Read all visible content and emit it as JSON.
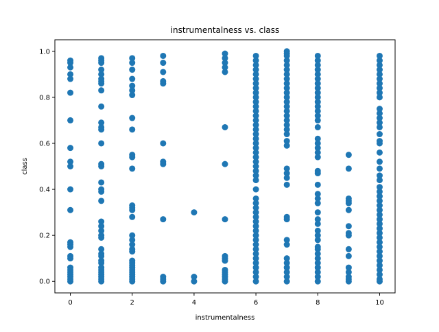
{
  "chart_data": {
    "type": "scatter",
    "title": "instrumentalness vs. class",
    "xlabel": "instrumentalness",
    "ylabel": "class",
    "xlim": [
      -0.5,
      10.5
    ],
    "ylim": [
      -0.05,
      1.05
    ],
    "x_ticks": [
      "0",
      "2",
      "4",
      "6",
      "8",
      "10"
    ],
    "y_ticks": [
      "0.0",
      "0.2",
      "0.4",
      "0.6",
      "0.8",
      "1.0"
    ],
    "x_tick_values": [
      0,
      2,
      4,
      6,
      8,
      10
    ],
    "y_tick_values": [
      0.0,
      0.2,
      0.4,
      0.6,
      0.8,
      1.0
    ],
    "grid": false,
    "marker_color": "#1f77b4",
    "series": [
      {
        "points": [
          [
            0,
            0.96
          ],
          [
            0,
            0.95
          ],
          [
            0,
            0.93
          ],
          [
            0,
            0.9
          ],
          [
            0,
            0.88
          ],
          [
            0,
            0.82
          ],
          [
            0,
            0.7
          ],
          [
            0,
            0.58
          ],
          [
            0,
            0.52
          ],
          [
            0,
            0.5
          ],
          [
            0,
            0.4
          ],
          [
            0,
            0.31
          ],
          [
            0,
            0.17
          ],
          [
            0,
            0.16
          ],
          [
            0,
            0.15
          ],
          [
            0,
            0.11
          ],
          [
            0,
            0.1
          ],
          [
            0,
            0.06
          ],
          [
            0,
            0.05
          ],
          [
            0,
            0.04
          ],
          [
            0,
            0.03
          ],
          [
            0,
            0.02
          ],
          [
            0,
            0.01
          ],
          [
            0,
            0.0
          ],
          [
            1,
            0.97
          ],
          [
            1,
            0.96
          ],
          [
            1,
            0.95
          ],
          [
            1,
            0.92
          ],
          [
            1,
            0.9
          ],
          [
            1,
            0.88
          ],
          [
            1,
            0.87
          ],
          [
            1,
            0.86
          ],
          [
            1,
            0.83
          ],
          [
            1,
            0.76
          ],
          [
            1,
            0.69
          ],
          [
            1,
            0.67
          ],
          [
            1,
            0.66
          ],
          [
            1,
            0.6
          ],
          [
            1,
            0.51
          ],
          [
            1,
            0.5
          ],
          [
            1,
            0.43
          ],
          [
            1,
            0.4
          ],
          [
            1,
            0.39
          ],
          [
            1,
            0.35
          ],
          [
            1,
            0.26
          ],
          [
            1,
            0.24
          ],
          [
            1,
            0.22
          ],
          [
            1,
            0.2
          ],
          [
            1,
            0.19
          ],
          [
            1,
            0.14
          ],
          [
            1,
            0.12
          ],
          [
            1,
            0.11
          ],
          [
            1,
            0.09
          ],
          [
            1,
            0.08
          ],
          [
            1,
            0.06
          ],
          [
            1,
            0.05
          ],
          [
            1,
            0.04
          ],
          [
            1,
            0.03
          ],
          [
            1,
            0.02
          ],
          [
            1,
            0.01
          ],
          [
            1,
            0.0
          ],
          [
            2,
            0.97
          ],
          [
            2,
            0.95
          ],
          [
            2,
            0.92
          ],
          [
            2,
            0.88
          ],
          [
            2,
            0.85
          ],
          [
            2,
            0.83
          ],
          [
            2,
            0.81
          ],
          [
            2,
            0.71
          ],
          [
            2,
            0.66
          ],
          [
            2,
            0.55
          ],
          [
            2,
            0.54
          ],
          [
            2,
            0.49
          ],
          [
            2,
            0.33
          ],
          [
            2,
            0.32
          ],
          [
            2,
            0.31
          ],
          [
            2,
            0.28
          ],
          [
            2,
            0.2
          ],
          [
            2,
            0.18
          ],
          [
            2,
            0.16
          ],
          [
            2,
            0.14
          ],
          [
            2,
            0.13
          ],
          [
            2,
            0.09
          ],
          [
            2,
            0.08
          ],
          [
            2,
            0.07
          ],
          [
            2,
            0.06
          ],
          [
            2,
            0.05
          ],
          [
            2,
            0.04
          ],
          [
            2,
            0.03
          ],
          [
            2,
            0.02
          ],
          [
            2,
            0.01
          ],
          [
            2,
            0.0
          ],
          [
            3,
            0.98
          ],
          [
            3,
            0.95
          ],
          [
            3,
            0.91
          ],
          [
            3,
            0.87
          ],
          [
            3,
            0.86
          ],
          [
            3,
            0.6
          ],
          [
            3,
            0.52
          ],
          [
            3,
            0.51
          ],
          [
            3,
            0.27
          ],
          [
            3,
            0.02
          ],
          [
            3,
            0.01
          ],
          [
            3,
            0.0
          ],
          [
            4,
            0.3
          ],
          [
            4,
            0.02
          ],
          [
            4,
            0.0
          ],
          [
            5,
            0.99
          ],
          [
            5,
            0.97
          ],
          [
            5,
            0.95
          ],
          [
            5,
            0.93
          ],
          [
            5,
            0.91
          ],
          [
            5,
            0.67
          ],
          [
            5,
            0.51
          ],
          [
            5,
            0.27
          ],
          [
            5,
            0.11
          ],
          [
            5,
            0.1
          ],
          [
            5,
            0.09
          ],
          [
            5,
            0.05
          ],
          [
            5,
            0.04
          ],
          [
            5,
            0.03
          ],
          [
            5,
            0.02
          ],
          [
            5,
            0.01
          ],
          [
            5,
            0.0
          ],
          [
            6,
            0.98
          ],
          [
            6,
            0.96
          ],
          [
            6,
            0.94
          ],
          [
            6,
            0.92
          ],
          [
            6,
            0.9
          ],
          [
            6,
            0.88
          ],
          [
            6,
            0.86
          ],
          [
            6,
            0.84
          ],
          [
            6,
            0.82
          ],
          [
            6,
            0.8
          ],
          [
            6,
            0.78
          ],
          [
            6,
            0.76
          ],
          [
            6,
            0.74
          ],
          [
            6,
            0.72
          ],
          [
            6,
            0.7
          ],
          [
            6,
            0.68
          ],
          [
            6,
            0.66
          ],
          [
            6,
            0.64
          ],
          [
            6,
            0.62
          ],
          [
            6,
            0.6
          ],
          [
            6,
            0.58
          ],
          [
            6,
            0.56
          ],
          [
            6,
            0.54
          ],
          [
            6,
            0.52
          ],
          [
            6,
            0.5
          ],
          [
            6,
            0.48
          ],
          [
            6,
            0.46
          ],
          [
            6,
            0.44
          ],
          [
            6,
            0.4
          ],
          [
            6,
            0.36
          ],
          [
            6,
            0.34
          ],
          [
            6,
            0.32
          ],
          [
            6,
            0.3
          ],
          [
            6,
            0.28
          ],
          [
            6,
            0.26
          ],
          [
            6,
            0.24
          ],
          [
            6,
            0.22
          ],
          [
            6,
            0.2
          ],
          [
            6,
            0.18
          ],
          [
            6,
            0.16
          ],
          [
            6,
            0.14
          ],
          [
            6,
            0.12
          ],
          [
            6,
            0.1
          ],
          [
            6,
            0.08
          ],
          [
            6,
            0.06
          ],
          [
            6,
            0.04
          ],
          [
            6,
            0.02
          ],
          [
            6,
            0.0
          ],
          [
            7,
            1.0
          ],
          [
            7,
            0.99
          ],
          [
            7,
            0.98
          ],
          [
            7,
            0.96
          ],
          [
            7,
            0.94
          ],
          [
            7,
            0.92
          ],
          [
            7,
            0.9
          ],
          [
            7,
            0.88
          ],
          [
            7,
            0.86
          ],
          [
            7,
            0.84
          ],
          [
            7,
            0.82
          ],
          [
            7,
            0.8
          ],
          [
            7,
            0.78
          ],
          [
            7,
            0.76
          ],
          [
            7,
            0.74
          ],
          [
            7,
            0.72
          ],
          [
            7,
            0.7
          ],
          [
            7,
            0.68
          ],
          [
            7,
            0.66
          ],
          [
            7,
            0.64
          ],
          [
            7,
            0.61
          ],
          [
            7,
            0.59
          ],
          [
            7,
            0.49
          ],
          [
            7,
            0.47
          ],
          [
            7,
            0.45
          ],
          [
            7,
            0.42
          ],
          [
            7,
            0.28
          ],
          [
            7,
            0.27
          ],
          [
            7,
            0.18
          ],
          [
            7,
            0.16
          ],
          [
            7,
            0.1
          ],
          [
            7,
            0.08
          ],
          [
            7,
            0.06
          ],
          [
            7,
            0.04
          ],
          [
            7,
            0.02
          ],
          [
            7,
            0.0
          ],
          [
            8,
            0.98
          ],
          [
            8,
            0.96
          ],
          [
            8,
            0.94
          ],
          [
            8,
            0.92
          ],
          [
            8,
            0.9
          ],
          [
            8,
            0.88
          ],
          [
            8,
            0.86
          ],
          [
            8,
            0.84
          ],
          [
            8,
            0.82
          ],
          [
            8,
            0.8
          ],
          [
            8,
            0.78
          ],
          [
            8,
            0.76
          ],
          [
            8,
            0.74
          ],
          [
            8,
            0.72
          ],
          [
            8,
            0.7
          ],
          [
            8,
            0.67
          ],
          [
            8,
            0.62
          ],
          [
            8,
            0.6
          ],
          [
            8,
            0.58
          ],
          [
            8,
            0.56
          ],
          [
            8,
            0.54
          ],
          [
            8,
            0.48
          ],
          [
            8,
            0.47
          ],
          [
            8,
            0.42
          ],
          [
            8,
            0.38
          ],
          [
            8,
            0.36
          ],
          [
            8,
            0.34
          ],
          [
            8,
            0.3
          ],
          [
            8,
            0.27
          ],
          [
            8,
            0.25
          ],
          [
            8,
            0.22
          ],
          [
            8,
            0.2
          ],
          [
            8,
            0.18
          ],
          [
            8,
            0.15
          ],
          [
            8,
            0.14
          ],
          [
            8,
            0.12
          ],
          [
            8,
            0.1
          ],
          [
            8,
            0.08
          ],
          [
            8,
            0.06
          ],
          [
            8,
            0.04
          ],
          [
            8,
            0.02
          ],
          [
            8,
            0.0
          ],
          [
            9,
            0.55
          ],
          [
            9,
            0.49
          ],
          [
            9,
            0.36
          ],
          [
            9,
            0.35
          ],
          [
            9,
            0.34
          ],
          [
            9,
            0.31
          ],
          [
            9,
            0.24
          ],
          [
            9,
            0.21
          ],
          [
            9,
            0.2
          ],
          [
            9,
            0.14
          ],
          [
            9,
            0.11
          ],
          [
            9,
            0.06
          ],
          [
            9,
            0.04
          ],
          [
            9,
            0.02
          ],
          [
            9,
            0.01
          ],
          [
            9,
            0.0
          ],
          [
            10,
            0.98
          ],
          [
            10,
            0.96
          ],
          [
            10,
            0.94
          ],
          [
            10,
            0.92
          ],
          [
            10,
            0.9
          ],
          [
            10,
            0.88
          ],
          [
            10,
            0.86
          ],
          [
            10,
            0.84
          ],
          [
            10,
            0.82
          ],
          [
            10,
            0.8
          ],
          [
            10,
            0.75
          ],
          [
            10,
            0.73
          ],
          [
            10,
            0.71
          ],
          [
            10,
            0.69
          ],
          [
            10,
            0.67
          ],
          [
            10,
            0.64
          ],
          [
            10,
            0.61
          ],
          [
            10,
            0.6
          ],
          [
            10,
            0.56
          ],
          [
            10,
            0.52
          ],
          [
            10,
            0.49
          ],
          [
            10,
            0.46
          ],
          [
            10,
            0.44
          ],
          [
            10,
            0.41
          ],
          [
            10,
            0.39
          ],
          [
            10,
            0.37
          ],
          [
            10,
            0.35
          ],
          [
            10,
            0.33
          ],
          [
            10,
            0.31
          ],
          [
            10,
            0.29
          ],
          [
            10,
            0.27
          ],
          [
            10,
            0.25
          ],
          [
            10,
            0.23
          ],
          [
            10,
            0.21
          ],
          [
            10,
            0.19
          ],
          [
            10,
            0.17
          ],
          [
            10,
            0.15
          ],
          [
            10,
            0.13
          ],
          [
            10,
            0.11
          ],
          [
            10,
            0.09
          ],
          [
            10,
            0.07
          ],
          [
            10,
            0.05
          ],
          [
            10,
            0.03
          ],
          [
            10,
            0.01
          ],
          [
            10,
            0.0
          ]
        ]
      }
    ]
  }
}
